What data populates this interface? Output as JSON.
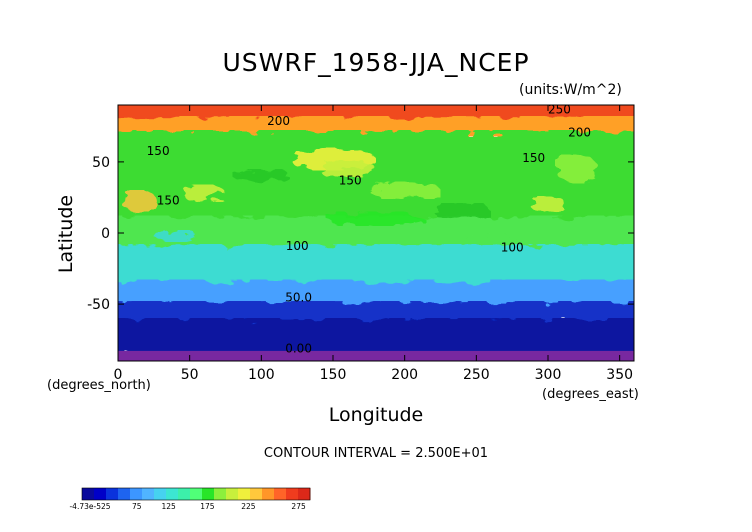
{
  "chart_data": {
    "type": "heatmap",
    "title": "USWRF_1958-JJA_NCEP",
    "units": "(units:W/m^2)",
    "xlabel": "Longitude",
    "ylabel": "Latitude",
    "x_unit_label": "(degrees_east)",
    "y_unit_label": "(degrees_north)",
    "xlim": [
      0,
      360
    ],
    "ylim": [
      -90,
      90
    ],
    "x_ticks": [
      0,
      50,
      100,
      150,
      200,
      250,
      300,
      350
    ],
    "y_ticks": [
      50,
      0,
      -50
    ],
    "contour_interval_text": "CONTOUR INTERVAL = 2.500E+01",
    "contour_labels": [
      {
        "text": "250",
        "x": 308,
        "y": 84
      },
      {
        "text": "200",
        "x": 112,
        "y": 76
      },
      {
        "text": "200",
        "x": 322,
        "y": 68
      },
      {
        "text": "150",
        "x": 28,
        "y": 55
      },
      {
        "text": "150",
        "x": 290,
        "y": 50
      },
      {
        "text": "150",
        "x": 162,
        "y": 34
      },
      {
        "text": "150",
        "x": 35,
        "y": 20
      },
      {
        "text": "100",
        "x": 125,
        "y": -12
      },
      {
        "text": "100",
        "x": 275,
        "y": -13
      },
      {
        "text": "50.0",
        "x": 126,
        "y": -48
      },
      {
        "text": "0.00",
        "x": 126,
        "y": -84
      }
    ],
    "colorbar": {
      "ticks": [
        "-4.73e-525",
        "75",
        "125",
        "175",
        "225",
        "275"
      ],
      "colors": [
        "#0a0a9c",
        "#0000c8",
        "#0a32dc",
        "#1e64f0",
        "#3c96ff",
        "#50b4ff",
        "#46d2f0",
        "#3ce6d2",
        "#3cf0aa",
        "#50ff78",
        "#28e628",
        "#8cf03c",
        "#c8f03c",
        "#f0f03c",
        "#ffc83c",
        "#ff9628",
        "#ff6428",
        "#f03c1e",
        "#dc2819"
      ]
    },
    "latitude_bands": [
      {
        "lat_range": [
          80,
          90
        ],
        "value": 260,
        "color": "#f04a1e"
      },
      {
        "lat_range": [
          70,
          80
        ],
        "value": 215,
        "color": "#ffa028"
      },
      {
        "lat_range": [
          10,
          70
        ],
        "value": 150,
        "color": "#3cdc32"
      },
      {
        "lat_range": [
          -10,
          10
        ],
        "value": 140,
        "color": "#50e650"
      },
      {
        "lat_range": [
          -35,
          -10
        ],
        "value": 110,
        "color": "#3cdcd2"
      },
      {
        "lat_range": [
          -50,
          -35
        ],
        "value": 85,
        "color": "#46a0ff"
      },
      {
        "lat_range": [
          -62,
          -50
        ],
        "value": 50,
        "color": "#1432c8"
      },
      {
        "lat_range": [
          -85,
          -62
        ],
        "value": 20,
        "color": "#0a14a0"
      },
      {
        "lat_range": [
          -90,
          -85
        ],
        "value": 0,
        "color": "#7828a0"
      }
    ]
  }
}
